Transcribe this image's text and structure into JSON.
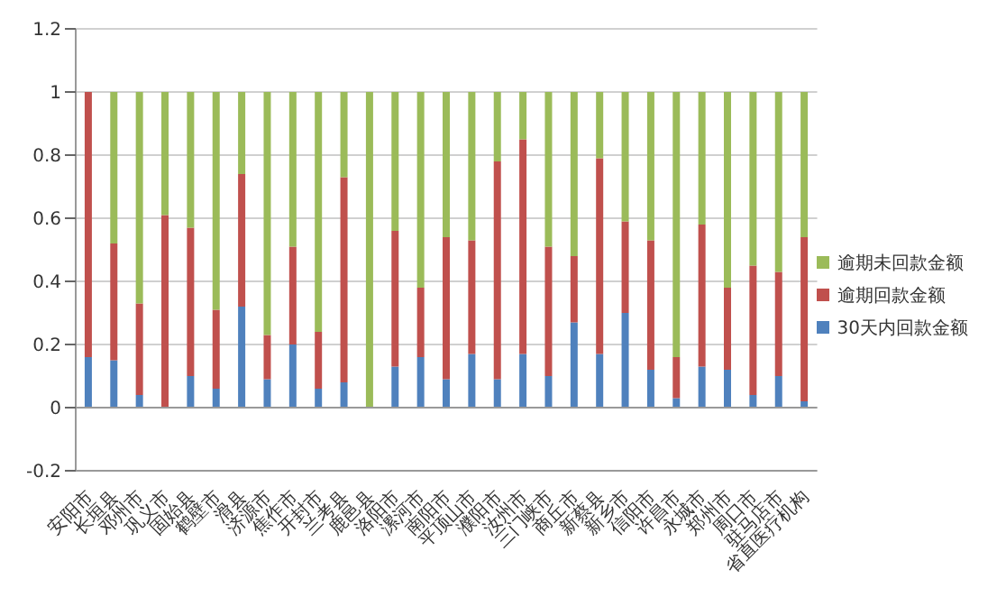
{
  "chart_data": {
    "type": "bar",
    "stacked": true,
    "categories": [
      "安阳市",
      "长垣县",
      "邓州市",
      "巩义市",
      "固始县",
      "鹤壁市",
      "滑县",
      "济源市",
      "焦作市",
      "开封市",
      "兰考县",
      "鹿邑县",
      "洛阳市",
      "漯河市",
      "南阳市",
      "平顶山市",
      "濮阳市",
      "汝州市",
      "三门峡市",
      "商丘市",
      "新蔡县",
      "新乡市",
      "信阳市",
      "许昌市",
      "永城市",
      "郑州市",
      "周口市",
      "驻马店市",
      "省直医疗机构"
    ],
    "series": [
      {
        "name": "30天内回款金额",
        "color": "#4f81bd",
        "values": [
          0.16,
          0.15,
          0.04,
          0,
          0.1,
          0.06,
          0.32,
          0.09,
          0.2,
          0.06,
          0.08,
          0,
          0.13,
          0.16,
          0.09,
          0.17,
          0.09,
          0.17,
          0.1,
          0.27,
          0.17,
          0.3,
          0.12,
          0.03,
          0.13,
          0.12,
          0.04,
          0.1,
          0.02
        ]
      },
      {
        "name": "逾期回款金额",
        "color": "#c0504d",
        "values": [
          0.84,
          0.37,
          0.29,
          0.61,
          0.47,
          0.25,
          0.42,
          0.14,
          0.31,
          0.18,
          0.65,
          0,
          0.43,
          0.22,
          0.45,
          0.36,
          0.69,
          0.68,
          0.41,
          0.21,
          0.62,
          0.29,
          0.41,
          0.13,
          0.45,
          0.26,
          0.41,
          0.33,
          0.52
        ]
      },
      {
        "name": "逾期未回款金额",
        "color": "#9bbb59",
        "values": [
          0,
          0.48,
          0.67,
          0.39,
          0.43,
          0.69,
          0.26,
          0.77,
          0.49,
          0.76,
          0.27,
          1,
          0.44,
          0.62,
          0.46,
          0.47,
          0.22,
          0.15,
          0.49,
          0.52,
          0.21,
          0.41,
          0.47,
          0.84,
          0.42,
          0.62,
          0.55,
          0.57,
          0.46
        ]
      }
    ],
    "ylim": [
      -0.2,
      1.2
    ],
    "yticks": [
      -0.2,
      0,
      0.2,
      0.4,
      0.6,
      0.8,
      1,
      1.2
    ],
    "grid": "y",
    "legend": "right"
  }
}
